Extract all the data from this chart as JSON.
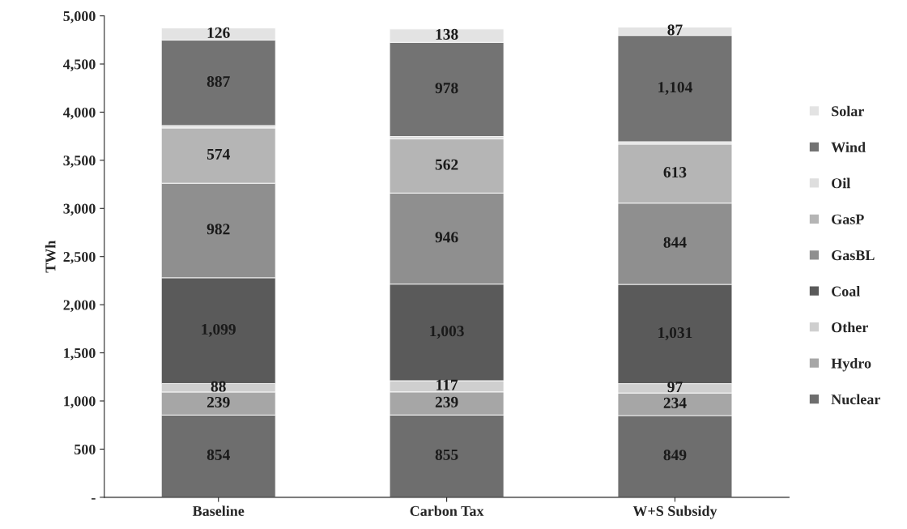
{
  "chart_data": {
    "type": "bar",
    "stacked": true,
    "ylabel": "TWh",
    "categories": [
      "Baseline",
      "Carbon Tax",
      "W+S Subsidy"
    ],
    "ylim": [
      0,
      5000
    ],
    "yticks": [
      {
        "value": 0,
        "label": "-"
      },
      {
        "value": 500,
        "label": "500"
      },
      {
        "value": 1000,
        "label": "1,000"
      },
      {
        "value": 1500,
        "label": "1,500"
      },
      {
        "value": 2000,
        "label": "2,000"
      },
      {
        "value": 2500,
        "label": "2,500"
      },
      {
        "value": 3000,
        "label": "3,000"
      },
      {
        "value": 3500,
        "label": "3,500"
      },
      {
        "value": 4000,
        "label": "4,000"
      },
      {
        "value": 4500,
        "label": "4,500"
      },
      {
        "value": 5000,
        "label": "5,000"
      }
    ],
    "legend": "right",
    "grid": false,
    "series": [
      {
        "name": "Nuclear",
        "color": "#6e6e6e",
        "values": [
          854,
          855,
          849
        ],
        "value_labels": [
          "854",
          "855",
          "849"
        ]
      },
      {
        "name": "Hydro",
        "color": "#a6a6a6",
        "values": [
          239,
          239,
          234
        ],
        "value_labels": [
          "239",
          "239",
          "234"
        ]
      },
      {
        "name": "Other",
        "color": "#cfcfcf",
        "values": [
          88,
          117,
          97
        ],
        "value_labels": [
          "88",
          "117",
          "97"
        ]
      },
      {
        "name": "Coal",
        "color": "#5a5a5a",
        "values": [
          1099,
          1003,
          1031
        ],
        "value_labels": [
          "1,099",
          "1,003",
          "1,031"
        ]
      },
      {
        "name": "GasBL",
        "color": "#8f8f8f",
        "values": [
          982,
          946,
          844
        ],
        "value_labels": [
          "982",
          "946",
          "844"
        ]
      },
      {
        "name": "GasP",
        "color": "#b5b5b5",
        "values": [
          574,
          562,
          613
        ],
        "value_labels": [
          "574",
          "562",
          "613"
        ]
      },
      {
        "name": "Oil",
        "color": "#dedede",
        "values": [
          25,
          25,
          25
        ],
        "value_labels": [
          null,
          null,
          null
        ]
      },
      {
        "name": "Wind",
        "color": "#737373",
        "values": [
          887,
          978,
          1104
        ],
        "value_labels": [
          "887",
          "978",
          "1,104"
        ]
      },
      {
        "name": "Solar",
        "color": "#e3e3e3",
        "values": [
          126,
          138,
          87
        ],
        "value_labels": [
          "126",
          "138",
          "87"
        ]
      }
    ]
  }
}
